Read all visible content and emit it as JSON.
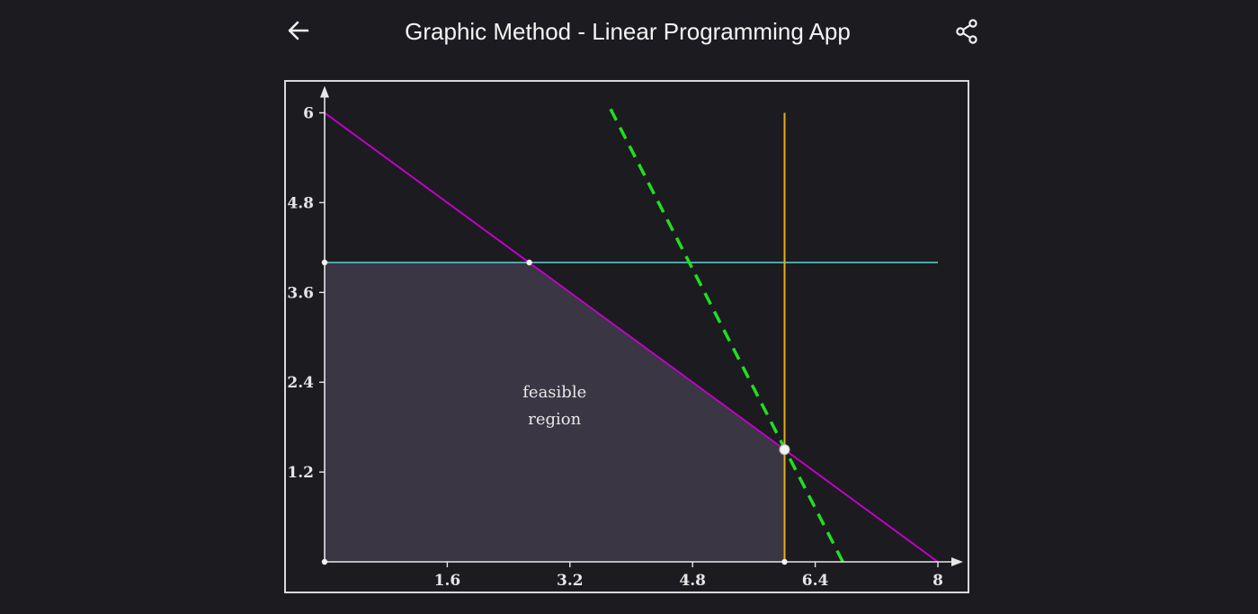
{
  "app_bar": {
    "title": "Graphic Method - Linear Programming App",
    "back_icon": "arrow-left-icon",
    "share_icon": "share-icon"
  },
  "colors": {
    "background": "#1c1b1f",
    "feasible_fill": "#3a3644",
    "constraint_purple": "#c000c8",
    "constraint_teal": "#4ea8a8",
    "constraint_yellow": "#e0b020",
    "objective_green": "#22dd22",
    "axis": "#e6e6e6"
  },
  "chart_data": {
    "type": "line",
    "xlim": [
      0,
      8
    ],
    "ylim": [
      0,
      6
    ],
    "x_ticks": [
      "1.6",
      "3.2",
      "4.8",
      "6.4",
      "8"
    ],
    "x_tick_values": [
      1.6,
      3.2,
      4.8,
      6.4,
      8
    ],
    "y_ticks": [
      "1.2",
      "2.4",
      "3.6",
      "4.8",
      "6"
    ],
    "y_tick_values": [
      1.2,
      2.4,
      3.6,
      4.8,
      6
    ],
    "grid": false,
    "region_label": [
      "feasible",
      "region"
    ],
    "feasible_region": [
      [
        0,
        0
      ],
      [
        0,
        4
      ],
      [
        2.67,
        4
      ],
      [
        6,
        1.5
      ],
      [
        6,
        0
      ]
    ],
    "lines": [
      {
        "points": [
          [
            0,
            6
          ],
          [
            8,
            0
          ]
        ],
        "color": "#c000c8",
        "style": "solid"
      },
      {
        "points": [
          [
            0,
            4
          ],
          [
            8,
            4
          ]
        ],
        "color": "#4ea8a8",
        "style": "solid"
      },
      {
        "points": [
          [
            6,
            0
          ],
          [
            6,
            6
          ]
        ],
        "color": "#e0b020",
        "style": "solid"
      },
      {
        "points": [
          [
            3.73,
            6.05
          ],
          [
            6.76,
            0
          ]
        ],
        "color": "#22dd22",
        "style": "dashed"
      }
    ],
    "vertices": [
      [
        0,
        0
      ],
      [
        0,
        4
      ],
      [
        2.67,
        4
      ],
      [
        6,
        0
      ]
    ],
    "optimal_point": [
      6,
      1.5
    ]
  }
}
